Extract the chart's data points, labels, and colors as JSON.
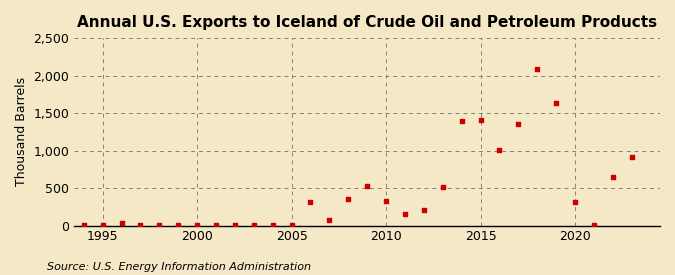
{
  "title": "Annual U.S. Exports to Iceland of Crude Oil and Petroleum Products",
  "ylabel": "Thousand Barrels",
  "source": "Source: U.S. Energy Information Administration",
  "background_color": "#f5e8c6",
  "marker_color": "#cc0000",
  "years": [
    1994,
    1995,
    1996,
    1997,
    1998,
    1999,
    2000,
    2001,
    2002,
    2003,
    2004,
    2005,
    2006,
    2007,
    2008,
    2009,
    2010,
    2011,
    2012,
    2013,
    2014,
    2015,
    2016,
    2017,
    2018,
    2019,
    2020,
    2021,
    2022,
    2023
  ],
  "values": [
    5,
    5,
    30,
    5,
    5,
    5,
    5,
    5,
    5,
    5,
    5,
    5,
    310,
    80,
    360,
    530,
    330,
    155,
    215,
    510,
    1390,
    1410,
    1010,
    1360,
    2090,
    1640,
    310,
    5,
    650,
    920
  ],
  "xlim": [
    1993.5,
    2024.5
  ],
  "ylim": [
    0,
    2500
  ],
  "yticks": [
    0,
    500,
    1000,
    1500,
    2000,
    2500
  ],
  "ytick_labels": [
    "0",
    "500",
    "1,000",
    "1,500",
    "2,000",
    "2,500"
  ],
  "xticks": [
    1995,
    2000,
    2005,
    2010,
    2015,
    2020
  ],
  "title_fontsize": 11,
  "label_fontsize": 9,
  "source_fontsize": 8
}
